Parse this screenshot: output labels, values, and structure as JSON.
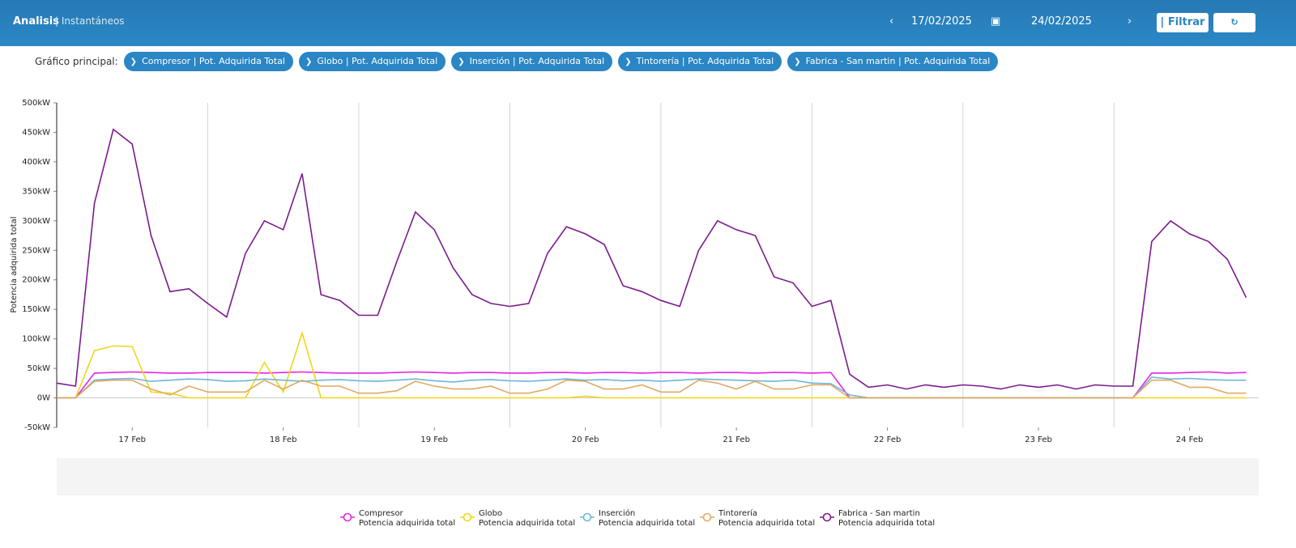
{
  "header": {
    "title": "Analisis",
    "subtitle": "| Instantáneos",
    "date_from": "17/02/2025",
    "date_to": "24/02/2025",
    "filter_button": "| Filtrar"
  },
  "filters": {
    "label": "Gráfico principal:",
    "chips": [
      "Compresor | Pot. Adquirida Total",
      "Globo | Pot. Adquirida Total",
      "Inserción | Pot. Adquirida Total",
      "Tintorería | Pot. Adquirida Total",
      "Fabrica - San martin | Pot. Adquirida Total"
    ]
  },
  "chart_data": {
    "type": "line",
    "ylabel": "Potencia adquirida total",
    "x": [
      0,
      3,
      6,
      9,
      12,
      15,
      18,
      21,
      24,
      27,
      30,
      33,
      36,
      39,
      42,
      45,
      48,
      51,
      54,
      57,
      60,
      63,
      66,
      69,
      72,
      75,
      78,
      81,
      84,
      87,
      90,
      93,
      96,
      99,
      102,
      105,
      108,
      111,
      114,
      117,
      120,
      123,
      126,
      129,
      132,
      135,
      138,
      141,
      144,
      147,
      150,
      153,
      156,
      159,
      162,
      165,
      168,
      171,
      174,
      177,
      180,
      183,
      186,
      189
    ],
    "xlim": [
      0,
      191
    ],
    "xticks": [
      {
        "value": 12,
        "label": "17 Feb"
      },
      {
        "value": 36,
        "label": "18 Feb"
      },
      {
        "value": 60,
        "label": "19 Feb"
      },
      {
        "value": 84,
        "label": "20 Feb"
      },
      {
        "value": 108,
        "label": "21 Feb"
      },
      {
        "value": 132,
        "label": "22 Feb"
      },
      {
        "value": 156,
        "label": "23 Feb"
      },
      {
        "value": 180,
        "label": "24 Feb"
      }
    ],
    "ylim": [
      -50,
      500
    ],
    "yticks": [
      {
        "value": -50,
        "label": "-50kW"
      },
      {
        "value": 0,
        "label": "0W"
      },
      {
        "value": 50,
        "label": "50kW"
      },
      {
        "value": 100,
        "label": "100kW"
      },
      {
        "value": 150,
        "label": "150kW"
      },
      {
        "value": 200,
        "label": "200kW"
      },
      {
        "value": 250,
        "label": "250kW"
      },
      {
        "value": 300,
        "label": "300kW"
      },
      {
        "value": 350,
        "label": "350kW"
      },
      {
        "value": 400,
        "label": "400kW"
      },
      {
        "value": 450,
        "label": "450kW"
      },
      {
        "value": 500,
        "label": "500kW"
      }
    ],
    "grid": true,
    "series": [
      {
        "name": "Compresor",
        "subtitle": "Potencia adquirida total",
        "color": "#e624e6",
        "values": [
          0,
          0,
          42,
          43,
          44,
          43,
          42,
          42,
          43,
          43,
          43,
          42,
          43,
          44,
          43,
          42,
          42,
          42,
          43,
          44,
          43,
          42,
          43,
          43,
          42,
          42,
          43,
          43,
          42,
          43,
          43,
          42,
          43,
          43,
          42,
          43,
          43,
          42,
          43,
          43,
          42,
          43,
          0,
          0,
          0,
          0,
          0,
          0,
          0,
          0,
          0,
          0,
          0,
          0,
          0,
          0,
          0,
          0,
          42,
          42,
          43,
          44,
          42,
          43
        ]
      },
      {
        "name": "Globo",
        "subtitle": "Potencia adquirida total",
        "color": "#f2d516",
        "values": [
          0,
          0,
          80,
          88,
          87,
          10,
          8,
          0,
          0,
          0,
          0,
          60,
          10,
          110,
          0,
          0,
          0,
          0,
          0,
          0,
          0,
          0,
          0,
          0,
          0,
          0,
          0,
          0,
          3,
          0,
          0,
          0,
          0,
          0,
          0,
          0,
          0,
          0,
          0,
          0,
          0,
          0,
          0,
          0,
          0,
          0,
          0,
          0,
          0,
          0,
          0,
          0,
          0,
          0,
          0,
          0,
          0,
          0,
          0,
          0,
          0,
          0,
          0,
          0
        ]
      },
      {
        "name": "Inserción",
        "subtitle": "Potencia adquirida total",
        "color": "#6cb6da",
        "values": [
          0,
          0,
          30,
          32,
          33,
          28,
          30,
          32,
          31,
          28,
          29,
          32,
          30,
          28,
          30,
          31,
          29,
          28,
          30,
          32,
          29,
          27,
          30,
          31,
          29,
          28,
          30,
          32,
          30,
          31,
          29,
          30,
          28,
          30,
          32,
          31,
          30,
          29,
          28,
          30,
          25,
          24,
          5,
          0,
          0,
          0,
          0,
          0,
          0,
          0,
          0,
          0,
          0,
          0,
          0,
          0,
          0,
          0,
          35,
          32,
          33,
          31,
          30,
          30
        ]
      },
      {
        "name": "Tintorería",
        "subtitle": "Potencia adquirida total",
        "color": "#e2a962",
        "values": [
          0,
          0,
          28,
          30,
          30,
          15,
          5,
          20,
          10,
          10,
          10,
          30,
          15,
          30,
          20,
          20,
          8,
          8,
          12,
          28,
          20,
          15,
          15,
          20,
          8,
          8,
          15,
          30,
          28,
          15,
          15,
          22,
          10,
          10,
          30,
          25,
          15,
          28,
          15,
          15,
          22,
          22,
          0,
          0,
          0,
          0,
          0,
          0,
          0,
          0,
          0,
          0,
          0,
          0,
          0,
          0,
          0,
          0,
          30,
          30,
          18,
          18,
          8,
          8
        ]
      },
      {
        "name": "Fabrica - San martin",
        "subtitle": "Potencia adquirida total",
        "color": "#7b1b8c",
        "values": [
          25,
          20,
          330,
          455,
          430,
          275,
          180,
          185,
          160,
          137,
          245,
          300,
          285,
          380,
          175,
          165,
          140,
          140,
          230,
          315,
          285,
          220,
          175,
          160,
          155,
          160,
          245,
          290,
          278,
          260,
          190,
          180,
          165,
          155,
          250,
          300,
          285,
          275,
          205,
          195,
          155,
          165,
          40,
          18,
          22,
          15,
          22,
          18,
          22,
          20,
          15,
          22,
          18,
          22,
          15,
          22,
          20,
          20,
          265,
          300,
          278,
          265,
          235,
          170
        ]
      }
    ]
  }
}
